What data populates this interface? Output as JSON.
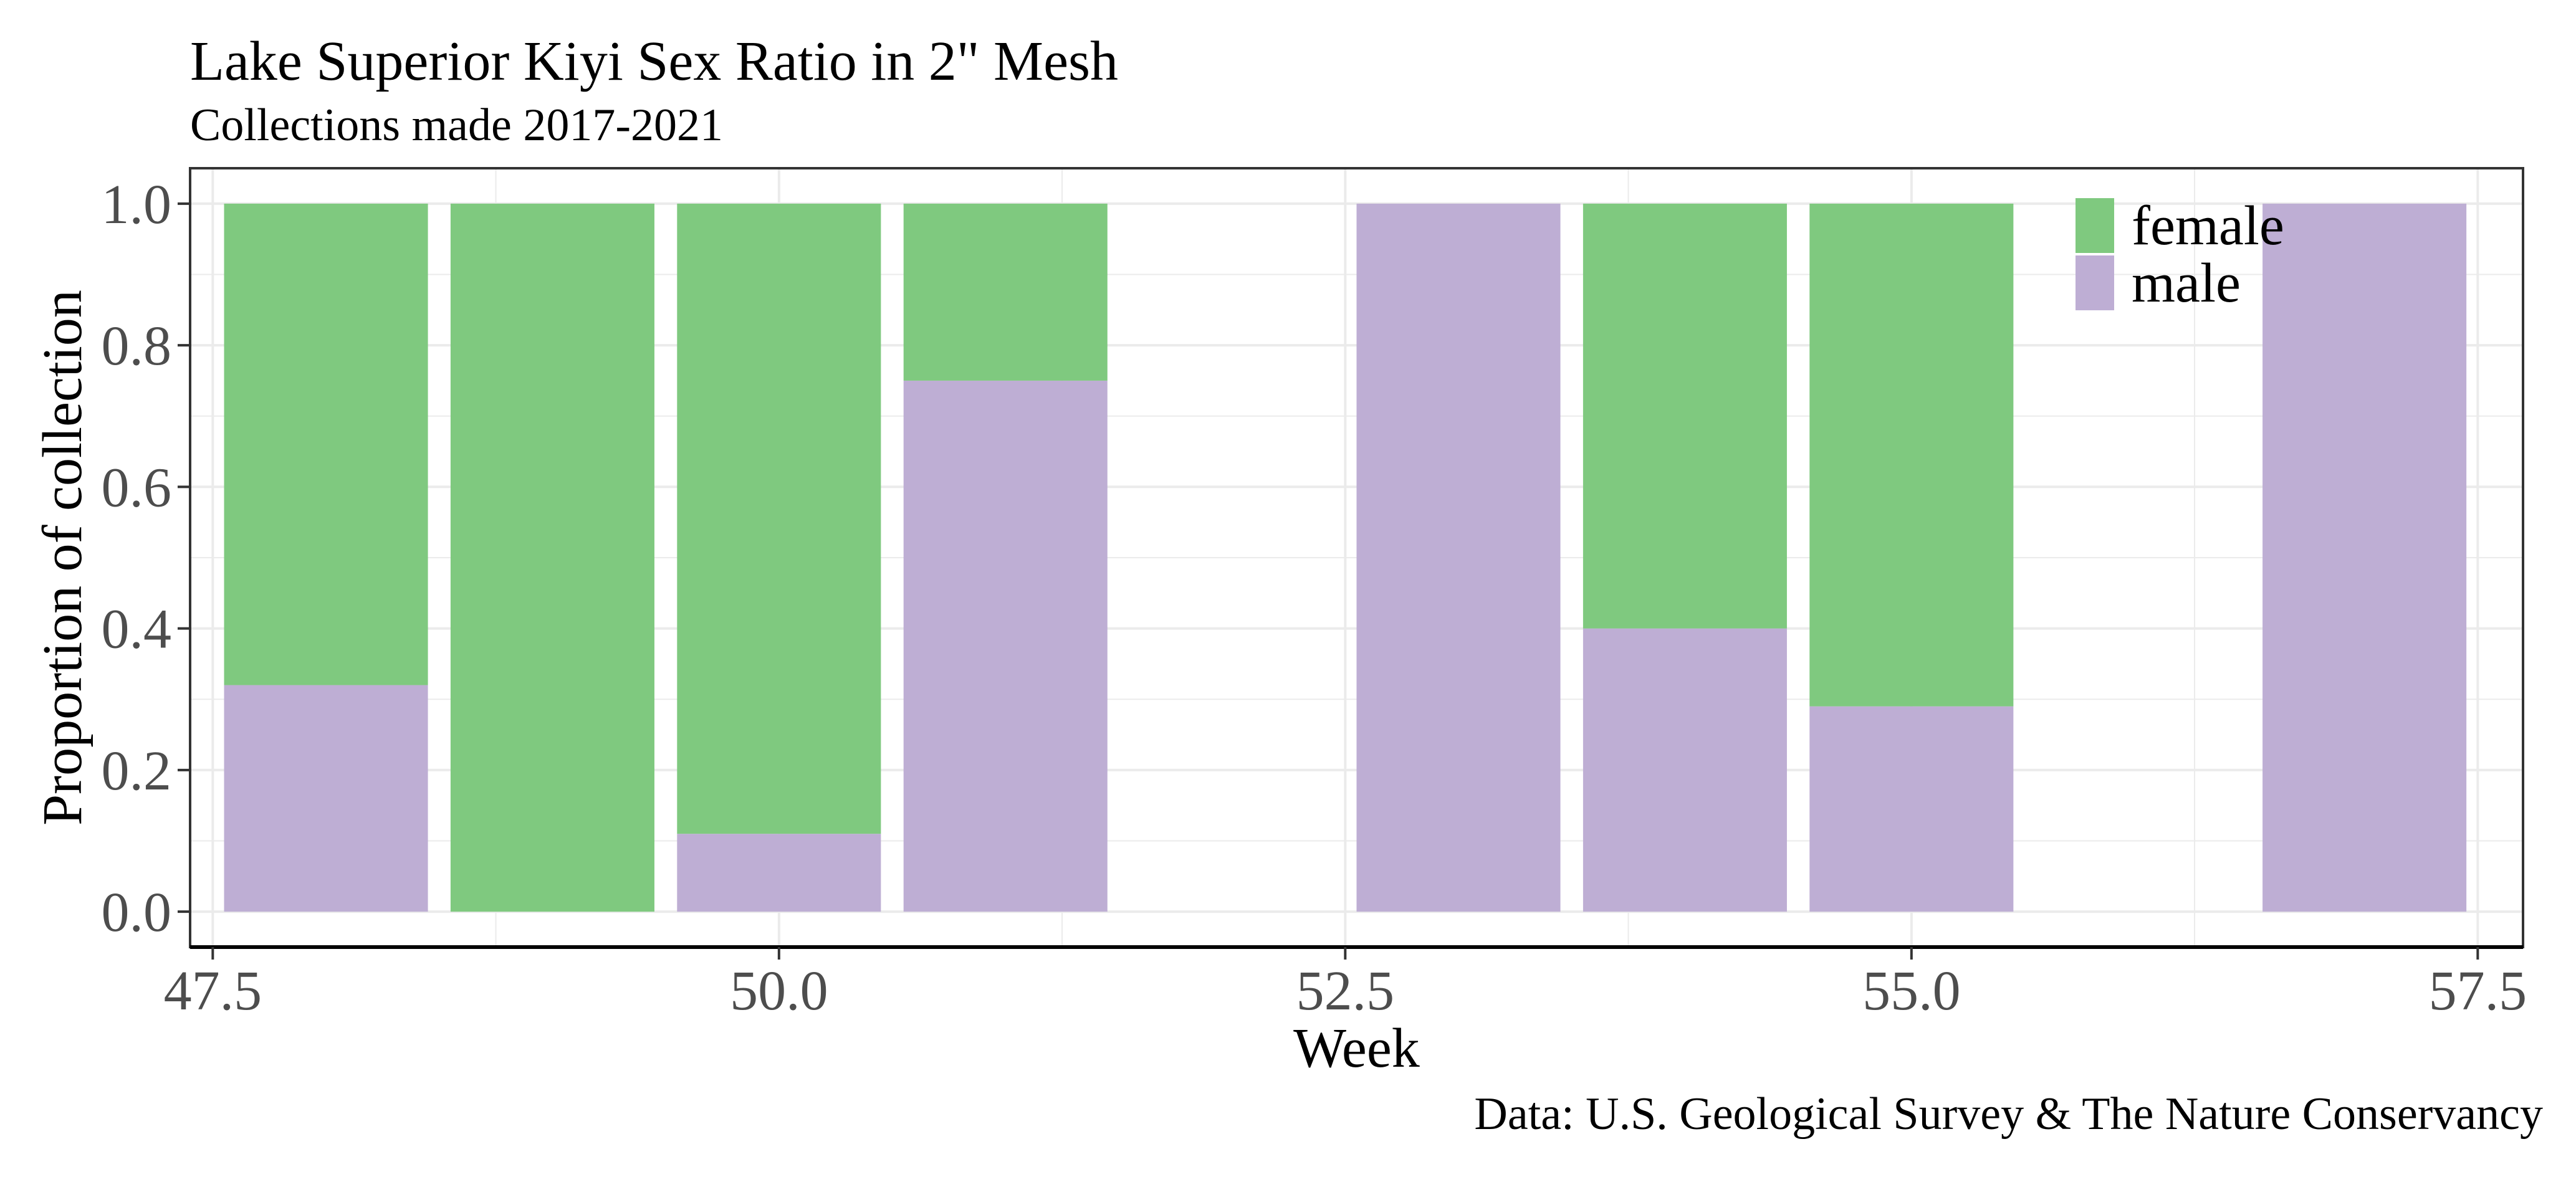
{
  "chart_data": {
    "type": "bar",
    "stacked": true,
    "title": "Lake Superior Kiyi Sex Ratio in 2\" Mesh",
    "subtitle": "Collections made 2017-2021",
    "xlabel": "Week",
    "ylabel": "Proportion of collection",
    "caption": "Data: U.S. Geological Survey & The Nature Conservancy",
    "xlim": [
      47.4,
      57.7
    ],
    "ylim": [
      -0.05,
      1.05
    ],
    "x_ticks": [
      47.5,
      50.0,
      52.5,
      55.0,
      57.5
    ],
    "x_tick_labels": [
      "47.5",
      "50.0",
      "52.5",
      "55.0",
      "57.5"
    ],
    "y_ticks": [
      0.0,
      0.2,
      0.4,
      0.6,
      0.8,
      1.0
    ],
    "y_tick_labels": [
      "0.0",
      "0.2",
      "0.4",
      "0.6",
      "0.8",
      "1.0"
    ],
    "x": [
      48,
      49,
      50,
      51,
      53,
      54,
      55,
      57
    ],
    "series": [
      {
        "name": "male",
        "color": "#beaed4",
        "values": [
          0.32,
          0.0,
          0.11,
          0.75,
          1.0,
          0.4,
          0.29,
          1.0
        ]
      },
      {
        "name": "female",
        "color": "#7fc97f",
        "values": [
          0.68,
          1.0,
          0.89,
          0.25,
          0.0,
          0.6,
          0.71,
          0.0
        ]
      }
    ],
    "legend": {
      "position": "top-right-inside",
      "entries": [
        {
          "label": "female",
          "color": "#7fc97f"
        },
        {
          "label": "male",
          "color": "#beaed4"
        }
      ]
    },
    "grid": true,
    "panel_border_color": "#333333",
    "grid_color": "#ebebeb"
  }
}
